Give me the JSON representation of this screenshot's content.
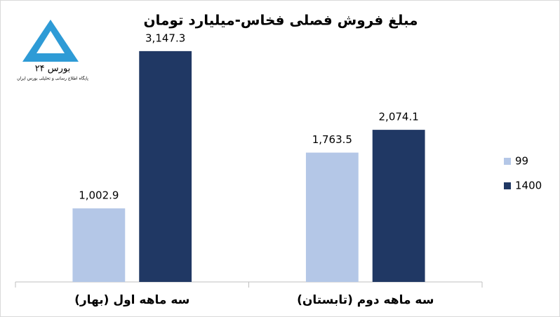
{
  "chart_data": {
    "type": "bar",
    "title": "مبلغ فروش فصلی فخاس-میلیارد تومان",
    "logo_title": "بورس ۲۴",
    "logo_subtitle": "پایگاه اطلاع رسانی و تحلیلی بورس ایران",
    "categories": [
      "سه ماهه اول (بهار)",
      "سه ماهه دوم (تابستان)"
    ],
    "series": [
      {
        "name": "99",
        "color": "#b4c7e7",
        "values": [
          1002.9,
          1763.5
        ],
        "value_labels": [
          "1,002.9",
          "1,763.5"
        ]
      },
      {
        "name": "1400",
        "color": "#203864",
        "values": [
          3147.3,
          2074.1
        ],
        "value_labels": [
          "3,147.3",
          "2,074.1"
        ]
      }
    ],
    "ylim": [
      0,
      3500
    ],
    "legend": "right"
  }
}
